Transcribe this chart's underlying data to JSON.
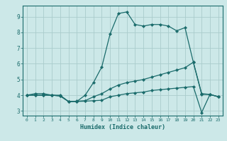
{
  "xlabel": "Humidex (Indice chaleur)",
  "background_color": "#cce8e8",
  "grid_color": "#aacccc",
  "line_color": "#1a6b6b",
  "xlim": [
    -0.5,
    23.5
  ],
  "ylim": [
    2.7,
    9.7
  ],
  "yticks": [
    3,
    4,
    5,
    6,
    7,
    8,
    9
  ],
  "xticks": [
    0,
    1,
    2,
    3,
    4,
    5,
    6,
    7,
    8,
    9,
    10,
    11,
    12,
    13,
    14,
    15,
    16,
    17,
    18,
    19,
    20,
    21,
    22,
    23
  ],
  "series1_x": [
    0,
    1,
    2,
    3,
    4,
    5,
    6,
    7,
    8,
    9,
    10,
    11,
    12,
    13,
    14,
    15,
    16,
    17,
    18,
    19,
    20,
    21,
    22,
    23
  ],
  "series1_y": [
    4.0,
    4.1,
    4.1,
    4.0,
    4.0,
    3.6,
    3.6,
    4.0,
    4.8,
    5.8,
    7.9,
    9.2,
    9.3,
    8.5,
    8.4,
    8.5,
    8.5,
    8.4,
    8.1,
    8.3,
    6.1,
    4.1,
    4.05,
    3.9
  ],
  "series2_x": [
    0,
    1,
    2,
    3,
    4,
    5,
    6,
    7,
    8,
    9,
    10,
    11,
    12,
    13,
    14,
    15,
    16,
    17,
    18,
    19,
    20,
    21,
    22,
    23
  ],
  "series2_y": [
    4.0,
    4.0,
    4.0,
    4.0,
    3.95,
    3.6,
    3.6,
    3.62,
    3.65,
    3.68,
    3.9,
    4.0,
    4.1,
    4.15,
    4.2,
    4.3,
    4.35,
    4.4,
    4.45,
    4.5,
    4.55,
    2.9,
    4.05,
    3.9
  ],
  "series3_x": [
    0,
    1,
    2,
    3,
    4,
    5,
    6,
    7,
    8,
    9,
    10,
    11,
    12,
    13,
    14,
    15,
    16,
    17,
    18,
    19,
    20,
    21,
    22,
    23
  ],
  "series3_y": [
    4.0,
    4.0,
    4.0,
    4.0,
    3.95,
    3.6,
    3.62,
    3.65,
    3.9,
    4.1,
    4.4,
    4.65,
    4.8,
    4.9,
    5.0,
    5.15,
    5.3,
    5.45,
    5.6,
    5.75,
    6.1,
    4.05,
    4.05,
    3.9
  ]
}
